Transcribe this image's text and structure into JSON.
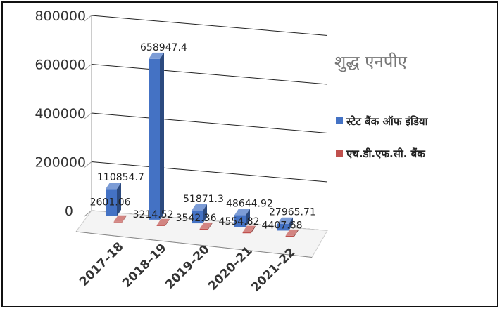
{
  "chart_data": {
    "type": "bar",
    "title": "शुद्ध एनपीए",
    "categories": [
      "2017–18",
      "2018–19",
      "2019–20",
      "2020–21",
      "2021–22"
    ],
    "series": [
      {
        "name": "स्टेट बैंक ऑफ इंडिया",
        "values": [
          110854.7,
          658947.4,
          51871.3,
          48644.92,
          27965.71
        ],
        "color": "#4472C4"
      },
      {
        "name": "एच.डी.एफ.सी. बैंक",
        "values": [
          2601.06,
          3214.52,
          3542.36,
          4554.82,
          4407.68
        ],
        "color": "#C0504D"
      }
    ],
    "data_labels": [
      [
        "110854.7",
        "658947.4",
        "51871.3",
        "48644.92",
        "27965.71"
      ],
      [
        "2601.06",
        "3214.52",
        "3542.36",
        "4554.82",
        "4407.68"
      ]
    ],
    "yticks": [
      "0",
      "200000",
      "400000",
      "600000",
      "800000"
    ],
    "ylim": [
      0,
      800000
    ],
    "grid": true,
    "legend_position": "right",
    "style": "3d-clustered-column"
  }
}
